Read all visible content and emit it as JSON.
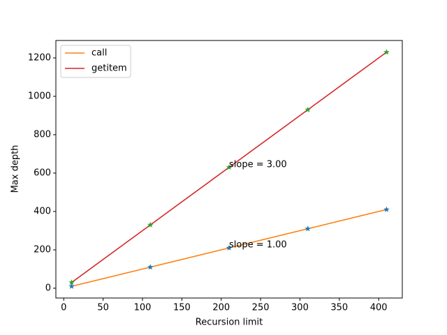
{
  "chart_data": {
    "type": "line",
    "x_label": "Recursion limit",
    "y_label": "Max depth",
    "x": [
      10,
      110,
      210,
      310,
      410
    ],
    "series": [
      {
        "name": "call",
        "color": "#ff7f0e",
        "marker_color": "#1f77b4",
        "values": [
          10,
          110,
          210,
          310,
          410
        ]
      },
      {
        "name": "getitem",
        "color": "#d62728",
        "marker_color": "#2ca02c",
        "values": [
          30,
          330,
          630,
          930,
          1230
        ]
      }
    ],
    "annotations": [
      {
        "text": "slope = 1.00",
        "x": 210,
        "y": 210
      },
      {
        "text": "slope = 3.00",
        "x": 210,
        "y": 630
      }
    ],
    "xlim": [
      -10,
      430
    ],
    "ylim": [
      -51,
      1291
    ],
    "xticks": [
      0,
      50,
      100,
      150,
      200,
      250,
      300,
      350,
      400
    ],
    "yticks": [
      0,
      200,
      400,
      600,
      800,
      1000,
      1200
    ],
    "legend": "upper left",
    "grid": false
  }
}
